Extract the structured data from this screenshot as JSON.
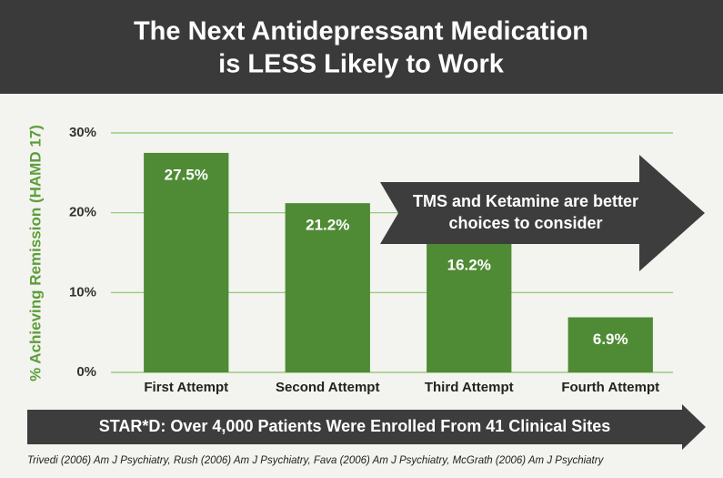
{
  "chart_data": {
    "type": "bar",
    "title": [
      "The Next Antidepressant Medication",
      "is LESS Likely to Work"
    ],
    "y_label": "% Achieving Remission (HAMD 17)",
    "categories": [
      "First Attempt",
      "Second Attempt",
      "Third Attempt",
      "Fourth Attempt"
    ],
    "values": [
      27.5,
      21.2,
      16.2,
      6.9
    ],
    "value_labels": [
      "27.5%",
      "21.2%",
      "16.2%",
      "6.9%"
    ],
    "color": "#4f8a34",
    "ylim": [
      0,
      30
    ],
    "yticks": [
      {
        "value": 0,
        "label": "0%"
      },
      {
        "value": 10,
        "label": "10%"
      },
      {
        "value": 20,
        "label": "20%"
      },
      {
        "value": 30,
        "label": "30%"
      }
    ],
    "grid": true,
    "annotation": [
      "TMS and Ketamine are better",
      "choices to consider"
    ],
    "banner": "STAR*D: Over 4,000 Patients Were Enrolled From 41 Clinical Sites",
    "source": "Trivedi (2006) Am J Psychiatry, Rush (2006) Am J Psychiatry, Fava (2006) Am J Psychiatry, McGrath (2006) Am J Psychiatry"
  }
}
